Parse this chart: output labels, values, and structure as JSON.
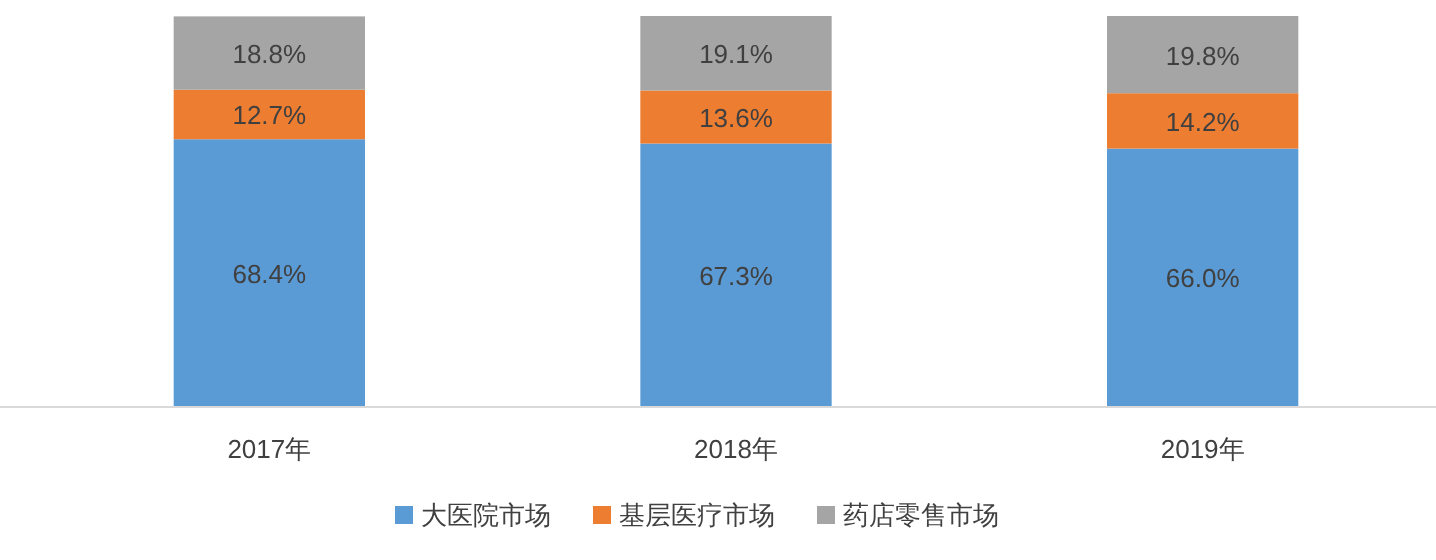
{
  "chart_data": {
    "type": "bar",
    "stacked": true,
    "categories": [
      "2017年",
      "2018年",
      "2019年"
    ],
    "series": [
      {
        "name": "大医院市场",
        "color": "#5b9bd5",
        "values": [
          68.4,
          67.3,
          66.0
        ],
        "value_labels": [
          "68.4%",
          "67.3%",
          "66.0%"
        ]
      },
      {
        "name": "基层医疗市场",
        "color": "#ed7d31",
        "values": [
          12.7,
          13.6,
          14.2
        ],
        "value_labels": [
          "12.7%",
          "13.6%",
          "14.2%"
        ]
      },
      {
        "name": "药店零售市场",
        "color": "#a5a5a5",
        "values": [
          18.8,
          19.1,
          19.8
        ],
        "value_labels": [
          "18.8%",
          "19.1%",
          "19.8%"
        ]
      }
    ],
    "legend": "bottom"
  }
}
